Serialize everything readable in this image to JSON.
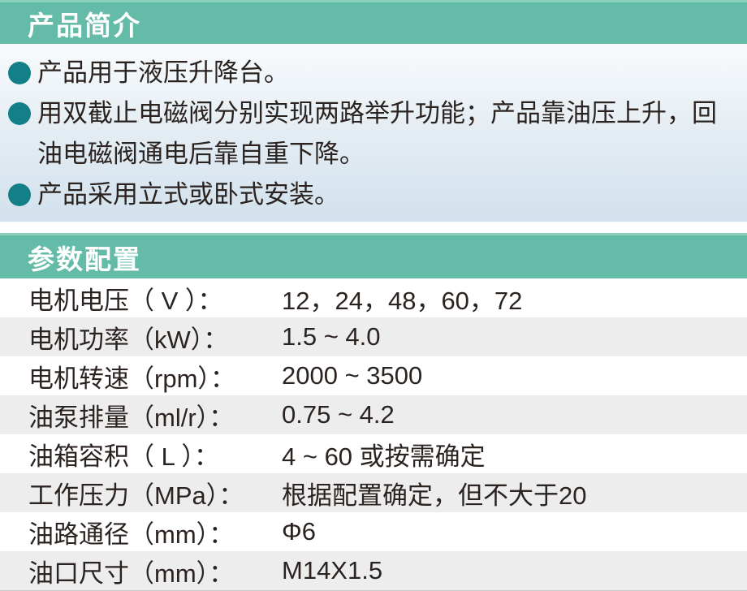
{
  "colors": {
    "header_teal": "#64bca8",
    "header_top_edge": "#8bd0bd",
    "bullet_teal": "#137f87",
    "intro_gradient_top": "#f8fbfd",
    "intro_gradient_bottom": "#d2e1ed",
    "row_alt_gray": "#ededee",
    "text_dark": "#2b2320"
  },
  "sections": {
    "intro": {
      "title": "产品简介",
      "bullets": [
        "产品用于液压升降台。",
        "用双截止电磁阀分别实现两路举升功能；产品靠油压上升，回油电磁阀通电后靠自重下降。",
        "产品采用立式或卧式安装。"
      ]
    },
    "params": {
      "title": "参数配置",
      "rows": [
        {
          "label": "电机电压（ V ）：",
          "value": "12，24，48，60，72"
        },
        {
          "label": "电机功率（kW）：",
          "value": "1.5 ~ 4.0"
        },
        {
          "label": "电机转速（rpm）：",
          "value": "2000 ~ 3500"
        },
        {
          "label": "油泵排量（ml/r）：",
          "value": "0.75 ~ 4.2"
        },
        {
          "label": "油箱容积（ L ）：",
          "value": "4 ~ 60 或按需确定"
        },
        {
          "label": "工作压力（MPa）：",
          "value": "根据配置确定，但不大于20"
        },
        {
          "label": "油路通径（mm）：",
          "value": "Φ6"
        },
        {
          "label": "油口尺寸（mm）：",
          "value": "M14X1.5"
        }
      ]
    }
  }
}
